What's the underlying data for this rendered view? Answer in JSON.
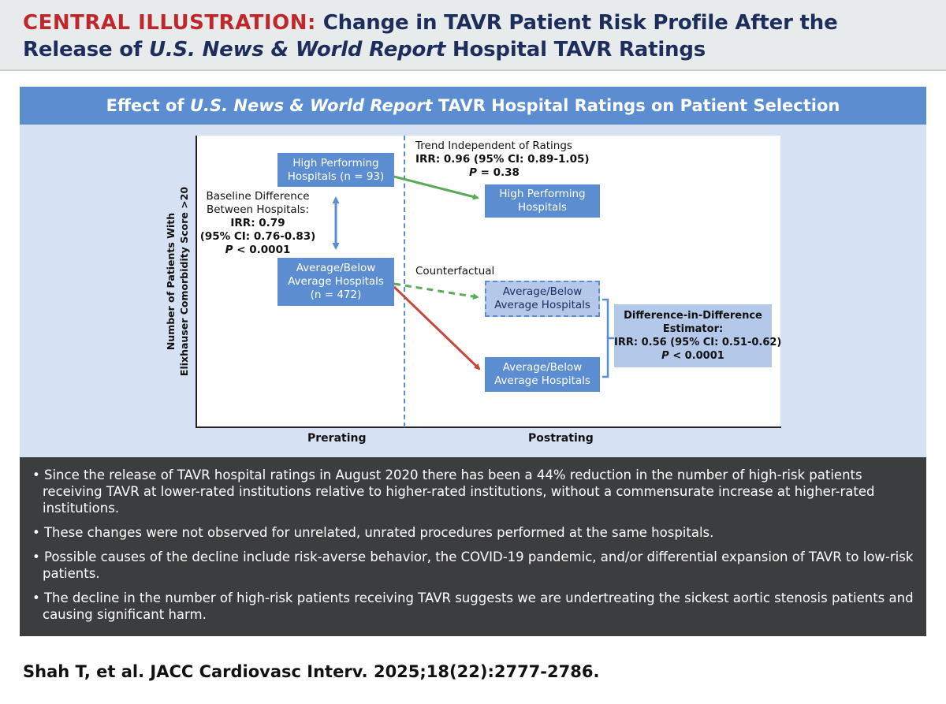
{
  "title": {
    "prefix": "CENTRAL ILLUSTRATION:",
    "line1_rest": "Change in TAVR Patient Risk Profile After the",
    "line2_pre": "Release of ",
    "line2_italic": "U.S. News & World Report",
    "line2_post": " Hospital TAVR Ratings"
  },
  "panel": {
    "banner_pre": "Effect of ",
    "banner_italic": "U.S. News & World Report",
    "banner_post": " TAVR Hospital Ratings on Patient Selection",
    "y_axis_label_line1": "Number of Patients With",
    "y_axis_label_line2": "Elixhauser Comorbidity Score >20",
    "x_tick_pre": "Prerating",
    "x_tick_post": "Postrating"
  },
  "boxes": {
    "high_pre": [
      "High Performing",
      "Hospitals (n = 93)"
    ],
    "avg_pre": [
      "Average/Below",
      "Average Hospitals",
      "(n = 472)"
    ],
    "high_post": [
      "High Performing",
      "Hospitals"
    ],
    "counterfactual": [
      "Average/Below",
      "Average Hospitals"
    ],
    "avg_post": [
      "Average/Below",
      "Average Hospitals"
    ],
    "estimator": [
      "Difference-in-Difference",
      "Estimator:",
      "IRR: 0.56 (95% CI: 0.51-0.62)",
      "P < 0.0001"
    ]
  },
  "notes": {
    "baseline": {
      "line1": "Baseline Difference",
      "line2": "Between Hospitals:",
      "line3": "IRR: 0.79",
      "line4": "(95% CI: 0.76-0.83)",
      "line5_p": "P",
      "line5_rest": " < 0.0001"
    },
    "trend": {
      "line1": "Trend Independent of Ratings",
      "line2": "IRR: 0.96 (95% CI: 0.89-1.05)",
      "line3_p": "P",
      "line3_rest": " = 0.38"
    },
    "counterfactual_label": "Counterfactual"
  },
  "colors": {
    "green_arrow": "#5aaa5a",
    "red_arrow": "#c8473c",
    "blue_arrow": "#5b8dd0",
    "bracket": "#5b8dd0"
  },
  "bullets": [
    "• Since the release of TAVR hospital ratings in August 2020 there has been a 44% reduction in the number of high-risk patients receiving TAVR at lower-rated institutions relative to higher-rated institutions, without a commensurate increase at higher-rated institutions.",
    "• These changes were not observed for unrelated, unrated procedures performed at the same hospitals.",
    "• Possible causes of the decline include risk-averse behavior, the COVID-19 pandemic, and/or differential expansion of TAVR to low-risk patients.",
    "• The decline in the number of high-risk patients receiving TAVR suggests we are undertreating the sickest aortic stenosis patients and causing significant harm."
  ],
  "citation": "Shah T, et al. JACC Cardiovasc Interv. 2025;18(22):2777-2786."
}
